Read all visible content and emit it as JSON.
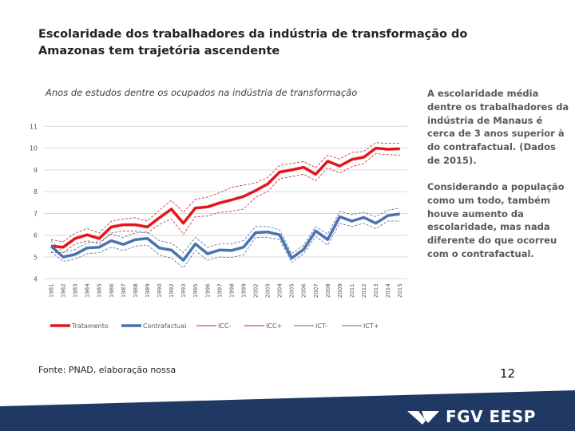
{
  "slide": {
    "title": "Escolaridade dos trabalhadores da indústria de transformação do Amazonas tem trajetória ascendente",
    "side_text": [
      "A escolaridade média dentre os trabalhadores da indústria de Manaus é cerca de 3 anos superior à do contrafactual. (Dados de 2015).",
      "Considerando a população como um todo, também houve aumento da escolaridade, mas nada diferente do que ocorreu com o contrafactual."
    ],
    "source": "Fonte: PNAD, elaboração nossa",
    "page_number": "12",
    "logo_text": "FGV EESP",
    "brand_color": "#1f3864"
  },
  "chart_data": {
    "type": "line",
    "title": "Anos de estudos dentre os ocupados na indústria de transformação",
    "xlabel": "",
    "ylabel": "",
    "ylim": [
      4,
      11
    ],
    "yticks": [
      4,
      5,
      6,
      7,
      8,
      9,
      10,
      11
    ],
    "grid": true,
    "legend_position": "bottom",
    "categories": [
      "1981",
      "1982",
      "1983",
      "1984",
      "1985",
      "1986",
      "1987",
      "1988",
      "1989",
      "1990",
      "1992",
      "1993",
      "1995",
      "1996",
      "1997",
      "1998",
      "1999",
      "2002",
      "2003",
      "2004",
      "2005",
      "2006",
      "2007",
      "2008",
      "2009",
      "2011",
      "2012",
      "2013",
      "2014",
      "2015"
    ],
    "series": [
      {
        "name": "Tratamento",
        "color": "#e3151a",
        "style": "solid-thick",
        "values": [
          5.5,
          5.45,
          5.85,
          6.02,
          5.85,
          6.38,
          6.48,
          6.48,
          6.38,
          6.8,
          7.2,
          6.55,
          7.25,
          7.3,
          7.48,
          7.62,
          7.78,
          8.05,
          8.35,
          8.9,
          9.0,
          9.12,
          8.8,
          9.4,
          9.18,
          9.48,
          9.58,
          10.0,
          9.95,
          9.97
        ]
      },
      {
        "name": "Contrafactual",
        "color": "#4a72b0",
        "style": "solid-thick",
        "values": [
          5.5,
          5.0,
          5.12,
          5.42,
          5.45,
          5.75,
          5.58,
          5.8,
          5.85,
          5.42,
          5.32,
          4.85,
          5.6,
          5.15,
          5.32,
          5.3,
          5.45,
          6.12,
          6.15,
          6.02,
          4.95,
          5.35,
          6.2,
          5.8,
          6.85,
          6.65,
          6.82,
          6.55,
          6.9,
          6.98
        ]
      },
      {
        "name": "ICC-",
        "color": "#c0262b",
        "style": "dashed",
        "values": [
          5.2,
          5.2,
          5.6,
          5.75,
          5.6,
          6.1,
          6.2,
          6.2,
          6.1,
          6.5,
          6.75,
          6.05,
          6.85,
          6.88,
          7.05,
          7.1,
          7.2,
          7.75,
          8.0,
          8.6,
          8.7,
          8.8,
          8.5,
          9.1,
          8.85,
          9.15,
          9.3,
          9.75,
          9.7,
          9.68
        ]
      },
      {
        "name": "ICC+",
        "color": "#c0262b",
        "style": "dashed",
        "values": [
          5.8,
          5.7,
          6.1,
          6.3,
          6.1,
          6.65,
          6.75,
          6.8,
          6.65,
          7.15,
          7.6,
          7.05,
          7.65,
          7.75,
          7.95,
          8.2,
          8.3,
          8.4,
          8.65,
          9.2,
          9.3,
          9.38,
          9.1,
          9.68,
          9.5,
          9.8,
          9.85,
          10.25,
          10.22,
          10.22
        ]
      },
      {
        "name": "ICT-",
        "color": "#4a6a96",
        "style": "dashed",
        "values": [
          5.25,
          4.8,
          4.9,
          5.15,
          5.2,
          5.45,
          5.3,
          5.5,
          5.55,
          5.1,
          4.95,
          4.5,
          5.3,
          4.85,
          5.0,
          4.98,
          5.1,
          5.9,
          5.9,
          5.8,
          4.75,
          5.15,
          5.95,
          5.55,
          6.55,
          6.4,
          6.55,
          6.3,
          6.65,
          6.65
        ]
      },
      {
        "name": "ICT+",
        "color": "#4a6a96",
        "style": "dashed",
        "values": [
          5.75,
          5.2,
          5.35,
          5.65,
          5.7,
          6.05,
          5.9,
          6.1,
          6.15,
          5.75,
          5.65,
          5.2,
          5.9,
          5.45,
          5.6,
          5.6,
          5.75,
          6.4,
          6.4,
          6.25,
          5.15,
          5.55,
          6.4,
          6.05,
          7.1,
          6.95,
          7.05,
          6.85,
          7.15,
          7.25
        ]
      }
    ]
  }
}
